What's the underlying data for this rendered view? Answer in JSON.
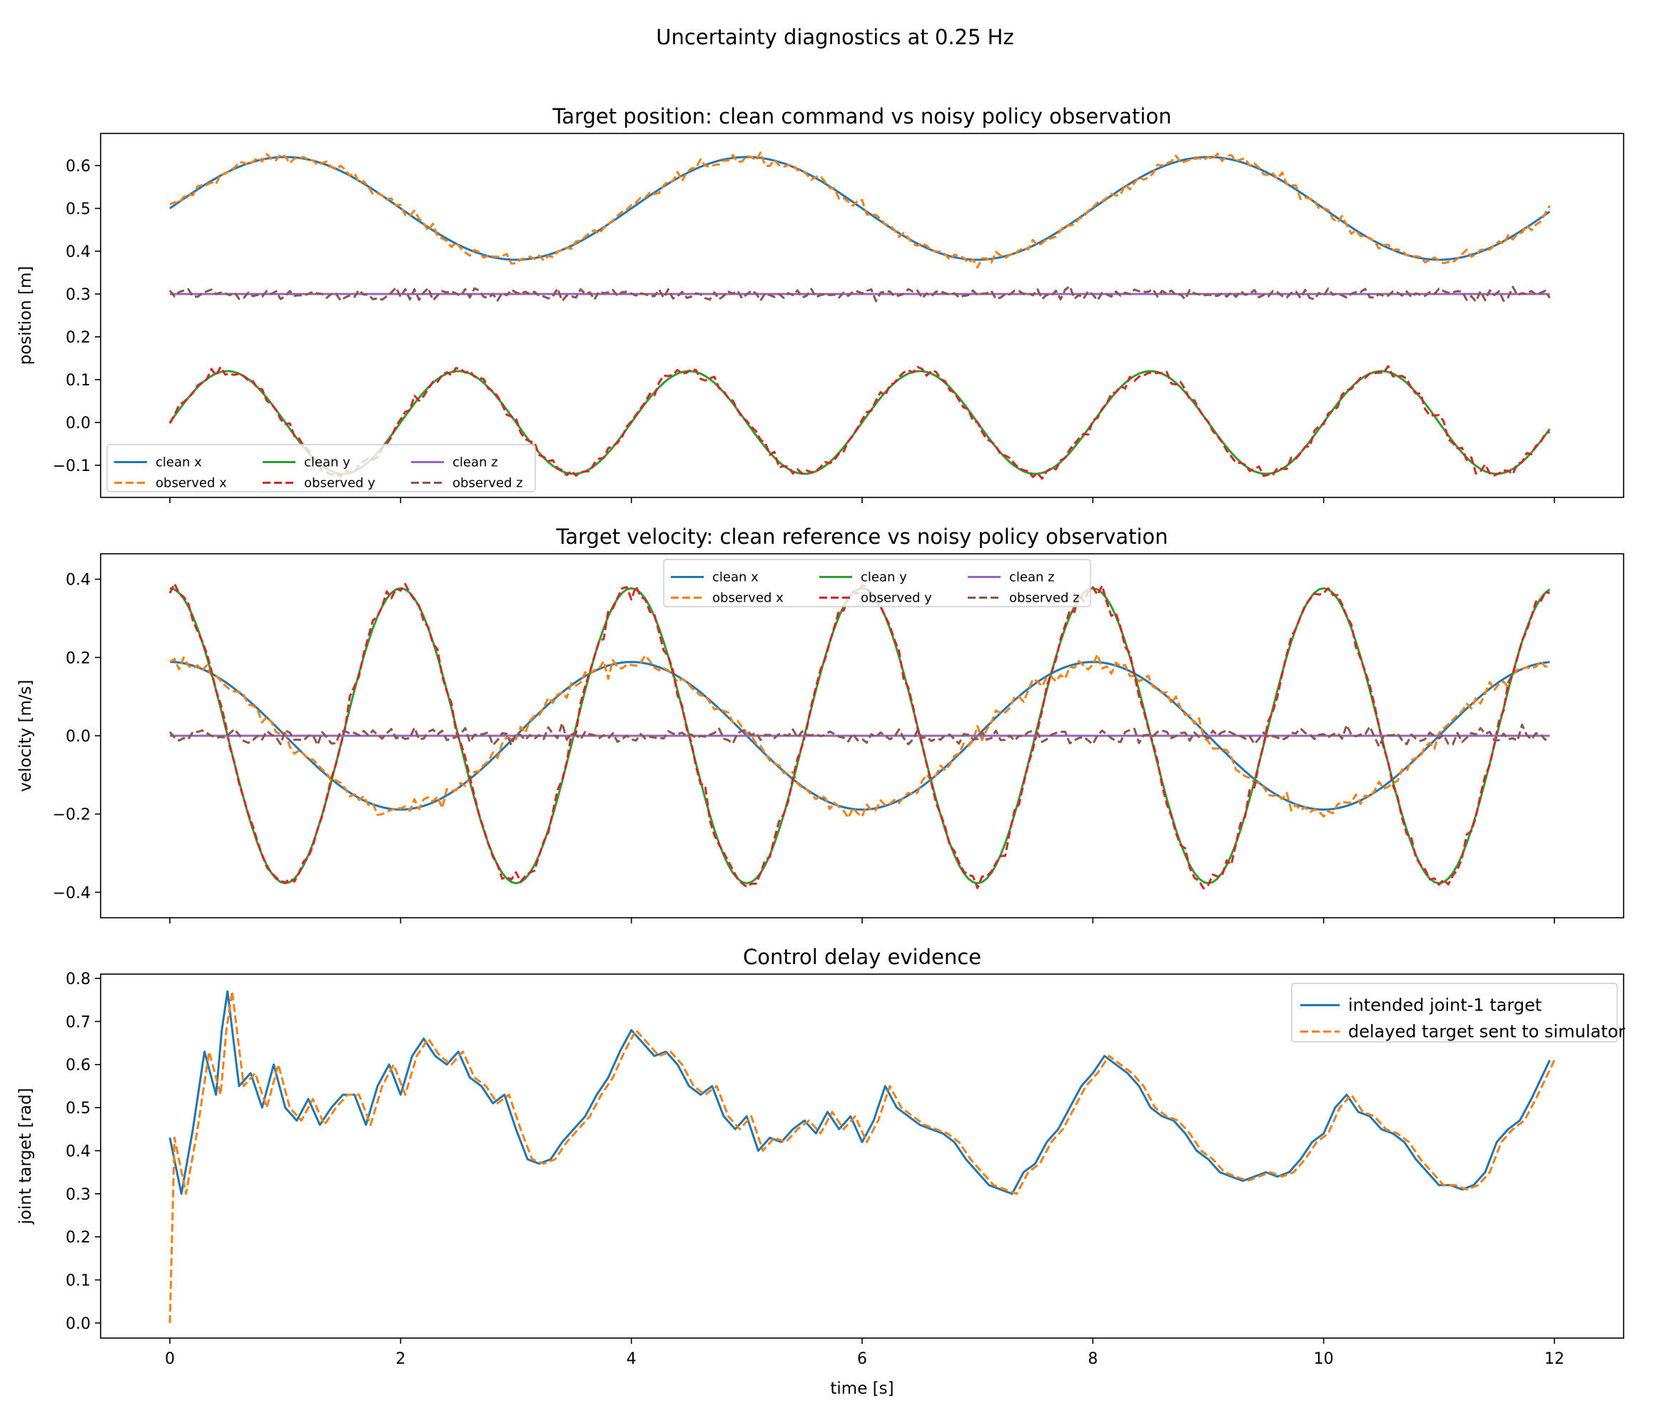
{
  "figure": {
    "suptitle": "Uncertainty diagnostics at 0.25 Hz",
    "xlabel": "time [s]"
  },
  "colors": {
    "blue": "#1f77b4",
    "orange": "#ff7f0e",
    "green": "#2ca02c",
    "red": "#d62728",
    "purple": "#9467bd",
    "brown": "#8c564b"
  },
  "chart_data": [
    {
      "type": "line",
      "title": "Target position: clean command vs noisy policy observation",
      "xlabel": "",
      "ylabel": "position [m]",
      "xlim": [
        -0.6,
        12.6
      ],
      "ylim": [
        -0.175,
        0.675
      ],
      "xticks": [
        0,
        2,
        4,
        6,
        8,
        10,
        12
      ],
      "yticks": [
        -0.1,
        0.0,
        0.1,
        0.2,
        0.3,
        0.4,
        0.5,
        0.6
      ],
      "ytick_labels": [
        "−0.1",
        "0.0",
        "0.1",
        "0.2",
        "0.3",
        "0.4",
        "0.5",
        "0.6"
      ],
      "show_xtick_labels": false,
      "grid": false,
      "legend": {
        "position": "lower-left",
        "ncol": 3,
        "entries": [
          "clean x",
          "observed x",
          "clean y",
          "observed y",
          "clean z",
          "observed z"
        ]
      },
      "x_range": [
        0,
        11.96
      ],
      "series": [
        {
          "name": "clean x",
          "color": "blue",
          "style": "solid",
          "function": "sin",
          "offset": 0.5,
          "amplitude": 0.12,
          "frequency_hz": 0.25,
          "phase": 0
        },
        {
          "name": "observed x",
          "color": "orange",
          "style": "dashed",
          "noisy_copy_of": "clean x",
          "noise_std": 0.01
        },
        {
          "name": "clean y",
          "color": "green",
          "style": "solid",
          "function": "sin",
          "offset": 0.0,
          "amplitude": 0.12,
          "frequency_hz": 0.5,
          "phase": 0
        },
        {
          "name": "observed y",
          "color": "red",
          "style": "dashed",
          "noisy_copy_of": "clean y",
          "noise_std": 0.01
        },
        {
          "name": "clean z",
          "color": "purple",
          "style": "solid",
          "function": "const",
          "offset": 0.3
        },
        {
          "name": "observed z",
          "color": "brown",
          "style": "dashed",
          "noisy_copy_of": "clean z",
          "noise_std": 0.01
        }
      ]
    },
    {
      "type": "line",
      "title": "Target velocity: clean reference vs noisy policy observation",
      "xlabel": "",
      "ylabel": "velocity [m/s]",
      "xlim": [
        -0.6,
        12.6
      ],
      "ylim": [
        -0.465,
        0.465
      ],
      "xticks": [
        0,
        2,
        4,
        6,
        8,
        10,
        12
      ],
      "yticks": [
        -0.4,
        -0.2,
        0.0,
        0.2,
        0.4
      ],
      "ytick_labels": [
        "−0.4",
        "−0.2",
        "0.0",
        "0.2",
        "0.4"
      ],
      "show_xtick_labels": false,
      "grid": false,
      "legend": {
        "position": "upper-center",
        "ncol": 3,
        "entries": [
          "clean x",
          "observed x",
          "clean y",
          "observed y",
          "clean z",
          "observed z"
        ]
      },
      "x_range": [
        0,
        11.96
      ],
      "series": [
        {
          "name": "clean x",
          "color": "blue",
          "style": "solid",
          "function": "cos",
          "offset": 0.0,
          "amplitude": 0.1885,
          "frequency_hz": 0.25,
          "phase": 0
        },
        {
          "name": "observed x",
          "color": "orange",
          "style": "dashed",
          "noisy_copy_of": "clean x",
          "noise_std": 0.015
        },
        {
          "name": "clean y",
          "color": "green",
          "style": "solid",
          "function": "cos",
          "offset": 0.0,
          "amplitude": 0.377,
          "frequency_hz": 0.5,
          "phase": 0
        },
        {
          "name": "observed y",
          "color": "red",
          "style": "dashed",
          "noisy_copy_of": "clean y",
          "noise_std": 0.015
        },
        {
          "name": "clean z",
          "color": "purple",
          "style": "solid",
          "function": "const",
          "offset": 0.0
        },
        {
          "name": "observed z",
          "color": "brown",
          "style": "dashed",
          "noisy_copy_of": "clean z",
          "noise_std": 0.015
        }
      ]
    },
    {
      "type": "line",
      "title": "Control delay evidence",
      "xlabel": "time [s]",
      "ylabel": "joint target [rad]",
      "xlim": [
        -0.6,
        12.6
      ],
      "ylim": [
        -0.035,
        0.81
      ],
      "xticks": [
        0,
        2,
        4,
        6,
        8,
        10,
        12
      ],
      "yticks": [
        0.0,
        0.1,
        0.2,
        0.3,
        0.4,
        0.5,
        0.6,
        0.7,
        0.8
      ],
      "ytick_labels": [
        "0.0",
        "0.1",
        "0.2",
        "0.3",
        "0.4",
        "0.5",
        "0.6",
        "0.7",
        "0.8"
      ],
      "show_xtick_labels": true,
      "grid": false,
      "legend": {
        "position": "upper-right",
        "ncol": 1,
        "entries": [
          "intended joint-1 target",
          "delayed target sent to simulator"
        ]
      },
      "series": [
        {
          "name": "intended joint-1 target",
          "color": "blue",
          "style": "solid",
          "x": [
            0,
            0.1,
            0.2,
            0.3,
            0.4,
            0.45,
            0.5,
            0.6,
            0.7,
            0.8,
            0.9,
            1.0,
            1.1,
            1.2,
            1.3,
            1.4,
            1.5,
            1.6,
            1.7,
            1.8,
            1.9,
            2.0,
            2.1,
            2.2,
            2.3,
            2.4,
            2.5,
            2.6,
            2.7,
            2.8,
            2.9,
            3.0,
            3.1,
            3.2,
            3.3,
            3.4,
            3.5,
            3.6,
            3.7,
            3.8,
            3.9,
            4.0,
            4.1,
            4.2,
            4.3,
            4.4,
            4.5,
            4.6,
            4.7,
            4.8,
            4.9,
            5.0,
            5.1,
            5.2,
            5.3,
            5.4,
            5.5,
            5.6,
            5.7,
            5.8,
            5.9,
            6.0,
            6.1,
            6.2,
            6.3,
            6.4,
            6.5,
            6.6,
            6.7,
            6.8,
            6.9,
            7.0,
            7.1,
            7.2,
            7.3,
            7.4,
            7.5,
            7.6,
            7.7,
            7.8,
            7.9,
            8.0,
            8.1,
            8.2,
            8.3,
            8.4,
            8.5,
            8.6,
            8.7,
            8.8,
            8.9,
            9.0,
            9.1,
            9.2,
            9.3,
            9.4,
            9.5,
            9.6,
            9.7,
            9.8,
            9.9,
            10.0,
            10.1,
            10.2,
            10.3,
            10.4,
            10.5,
            10.6,
            10.7,
            10.8,
            10.9,
            11.0,
            11.1,
            11.2,
            11.3,
            11.4,
            11.5,
            11.6,
            11.7,
            11.8,
            11.96
          ],
          "y": [
            0.43,
            0.3,
            0.45,
            0.63,
            0.53,
            0.68,
            0.77,
            0.55,
            0.58,
            0.5,
            0.6,
            0.5,
            0.47,
            0.52,
            0.46,
            0.5,
            0.53,
            0.53,
            0.46,
            0.55,
            0.6,
            0.53,
            0.62,
            0.66,
            0.62,
            0.6,
            0.63,
            0.57,
            0.55,
            0.51,
            0.53,
            0.45,
            0.38,
            0.37,
            0.38,
            0.42,
            0.45,
            0.48,
            0.53,
            0.57,
            0.63,
            0.68,
            0.65,
            0.62,
            0.63,
            0.6,
            0.55,
            0.53,
            0.55,
            0.48,
            0.45,
            0.48,
            0.4,
            0.43,
            0.42,
            0.45,
            0.47,
            0.44,
            0.49,
            0.45,
            0.48,
            0.42,
            0.47,
            0.55,
            0.5,
            0.48,
            0.46,
            0.45,
            0.44,
            0.42,
            0.38,
            0.35,
            0.32,
            0.31,
            0.3,
            0.35,
            0.37,
            0.42,
            0.45,
            0.5,
            0.55,
            0.58,
            0.62,
            0.6,
            0.58,
            0.55,
            0.5,
            0.48,
            0.47,
            0.44,
            0.4,
            0.38,
            0.35,
            0.34,
            0.33,
            0.34,
            0.35,
            0.34,
            0.35,
            0.38,
            0.42,
            0.44,
            0.5,
            0.53,
            0.49,
            0.48,
            0.45,
            0.44,
            0.42,
            0.38,
            0.35,
            0.32,
            0.32,
            0.31,
            0.32,
            0.35,
            0.42,
            0.45,
            0.47,
            0.52,
            0.61
          ]
        },
        {
          "name": "delayed target sent to simulator",
          "color": "orange",
          "style": "dashed",
          "delay_s": 0.04,
          "initial_value": 0.0
        }
      ]
    }
  ]
}
